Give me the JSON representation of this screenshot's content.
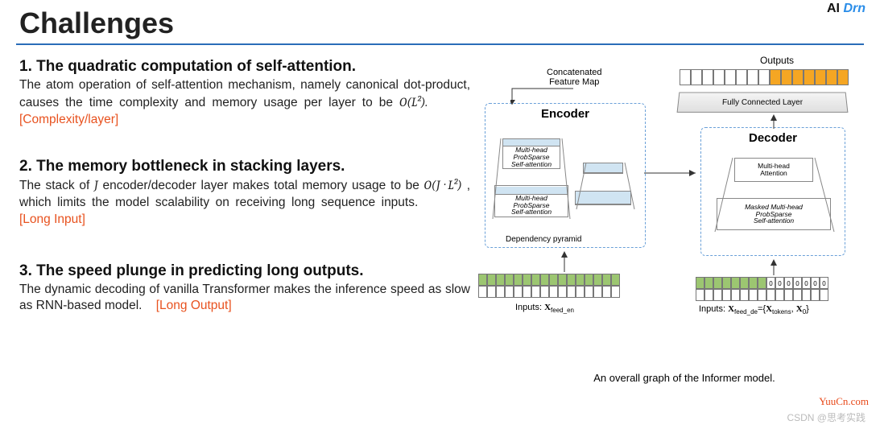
{
  "title": "Challenges",
  "logo": {
    "left": "AI ",
    "right": "Drn"
  },
  "challenges": [
    {
      "num": "1.",
      "title": "The quadratic computation of self-attention.",
      "body": "The atom operation of self-attention mechanism, namely canonical dot-product, causes the time complexity and memory usage per layer to be ",
      "math": "O(L²).",
      "tag": "[Complexity/layer]"
    },
    {
      "num": "2.",
      "title": "The memory bottleneck in stacking layers.",
      "body_pre": "The stack of ",
      "math_j": "J",
      "body_mid": " encoder/decoder layer makes total memory usage to be ",
      "math": "O(J · L²)",
      "body_post": ", which limits the model scalability on receiving long sequence inputs.",
      "tag": "[Long Input]"
    },
    {
      "num": "3.",
      "title": "The speed plunge in predicting long outputs.",
      "body": "The dynamic decoding of vanilla Transformer makes the inference speed as slow as RNN-based model.",
      "tag": "[Long Output]"
    }
  ],
  "diagram": {
    "outputs_label": "Outputs",
    "concat_label": "Concatenated\nFeature Map",
    "fc_label": "Fully Connected Layer",
    "encoder_title": "Encoder",
    "decoder_title": "Decoder",
    "enc_block": "Multi-head\nProbSparse\nSelf-attention",
    "enc_block2": "Multi-head\nProbSparse\nSelf-attention",
    "dep_label": "Dependency pyramid",
    "dec_block1": "Multi-head\nAttention",
    "dec_block2": "Masked Multi-head\nProbSparse\nSelf-attention",
    "inputs_en_label": "Inputs:",
    "inputs_en_math": "X_feed_en",
    "inputs_de_label": "Inputs:",
    "inputs_de_math": "X_feed_de = {X_tokens, X₀}",
    "caption": "An overall graph of the Informer model.",
    "outputs_total": 15,
    "outputs_orange_from": 8,
    "en_green_cells": 16,
    "de_green_cells": 8,
    "de_zero_cells": 7,
    "colors": {
      "blue": "#d0e4f2",
      "green": "#9cc671",
      "orange": "#f5a623",
      "dash": "#6aa0d8",
      "tag": "#e8521f",
      "underline": "#2a6db8"
    }
  },
  "watermarks": {
    "orange": "YuuCn.com",
    "grey": "CSDN @思考实践"
  }
}
